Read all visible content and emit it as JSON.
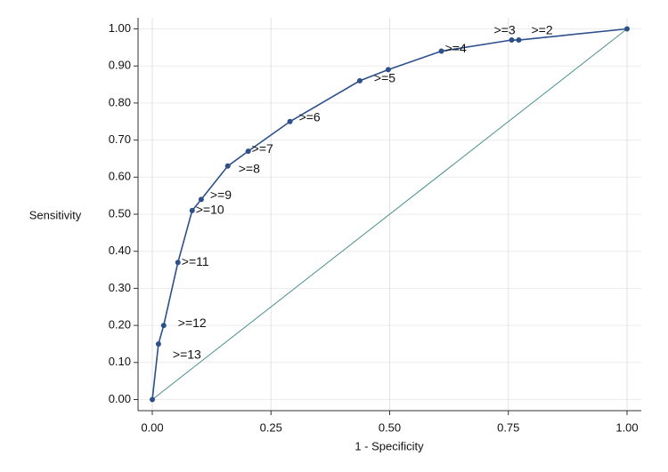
{
  "chart_data": {
    "type": "line",
    "xlabel": "1 - Specificity",
    "ylabel": "Sensitivity",
    "xlim": [
      -0.03,
      1.03
    ],
    "ylim": [
      -0.03,
      1.03
    ],
    "xticks": [
      {
        "value": 0,
        "label": "0.00"
      },
      {
        "value": 0.25,
        "label": "0.25"
      },
      {
        "value": 0.5,
        "label": "0.50"
      },
      {
        "value": 0.75,
        "label": "0.75"
      },
      {
        "value": 1,
        "label": "1.00"
      }
    ],
    "yticks": [
      {
        "value": 0,
        "label": "0.00"
      },
      {
        "value": 0.1,
        "label": "0.10"
      },
      {
        "value": 0.2,
        "label": "0.20"
      },
      {
        "value": 0.3,
        "label": "0.30"
      },
      {
        "value": 0.4,
        "label": "0.40"
      },
      {
        "value": 0.5,
        "label": "0.50"
      },
      {
        "value": 0.6,
        "label": "0.60"
      },
      {
        "value": 0.7,
        "label": "0.70"
      },
      {
        "value": 0.8,
        "label": "0.80"
      },
      {
        "value": 0.9,
        "label": "0.90"
      },
      {
        "value": 1,
        "label": "1.00"
      }
    ],
    "grid": true,
    "series": [
      {
        "color": "#2d4f8a",
        "x": [
          0,
          0.013,
          0.024,
          0.054,
          0.084,
          0.103,
          0.159,
          0.202,
          0.29,
          0.437,
          0.497,
          0.609,
          0.757,
          0.772,
          1
        ],
        "values": [
          0,
          0.15,
          0.2,
          0.37,
          0.51,
          0.54,
          0.63,
          0.67,
          0.75,
          0.86,
          0.89,
          0.94,
          0.97,
          0.97,
          1
        ],
        "point_labels": [
          null,
          ">=13",
          ">=12",
          ">=11",
          ">=10",
          ">=9",
          ">=8",
          ">=7",
          ">=6",
          ">=5",
          null,
          ">=4",
          ">=3",
          ">=2",
          null
        ]
      },
      {
        "color": "#4a8f8a",
        "x": [
          0,
          1
        ],
        "values": [
          0,
          1
        ]
      }
    ]
  }
}
